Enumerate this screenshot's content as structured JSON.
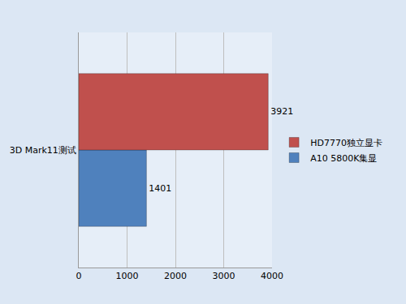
{
  "chart_data": {
    "type": "bar",
    "orientation": "horizontal",
    "categories": [
      "3D Mark11测试"
    ],
    "series": [
      {
        "name": "HD7770独立显卡",
        "color": "#c0504d",
        "values": [
          3921
        ]
      },
      {
        "name": "A10 5800K集显",
        "color": "#4f81bd",
        "values": [
          1401
        ]
      }
    ],
    "xlim": [
      0,
      4000
    ],
    "xticks": [
      0,
      1000,
      2000,
      3000,
      4000
    ],
    "grid": true,
    "legend": "right",
    "data_labels": true
  }
}
